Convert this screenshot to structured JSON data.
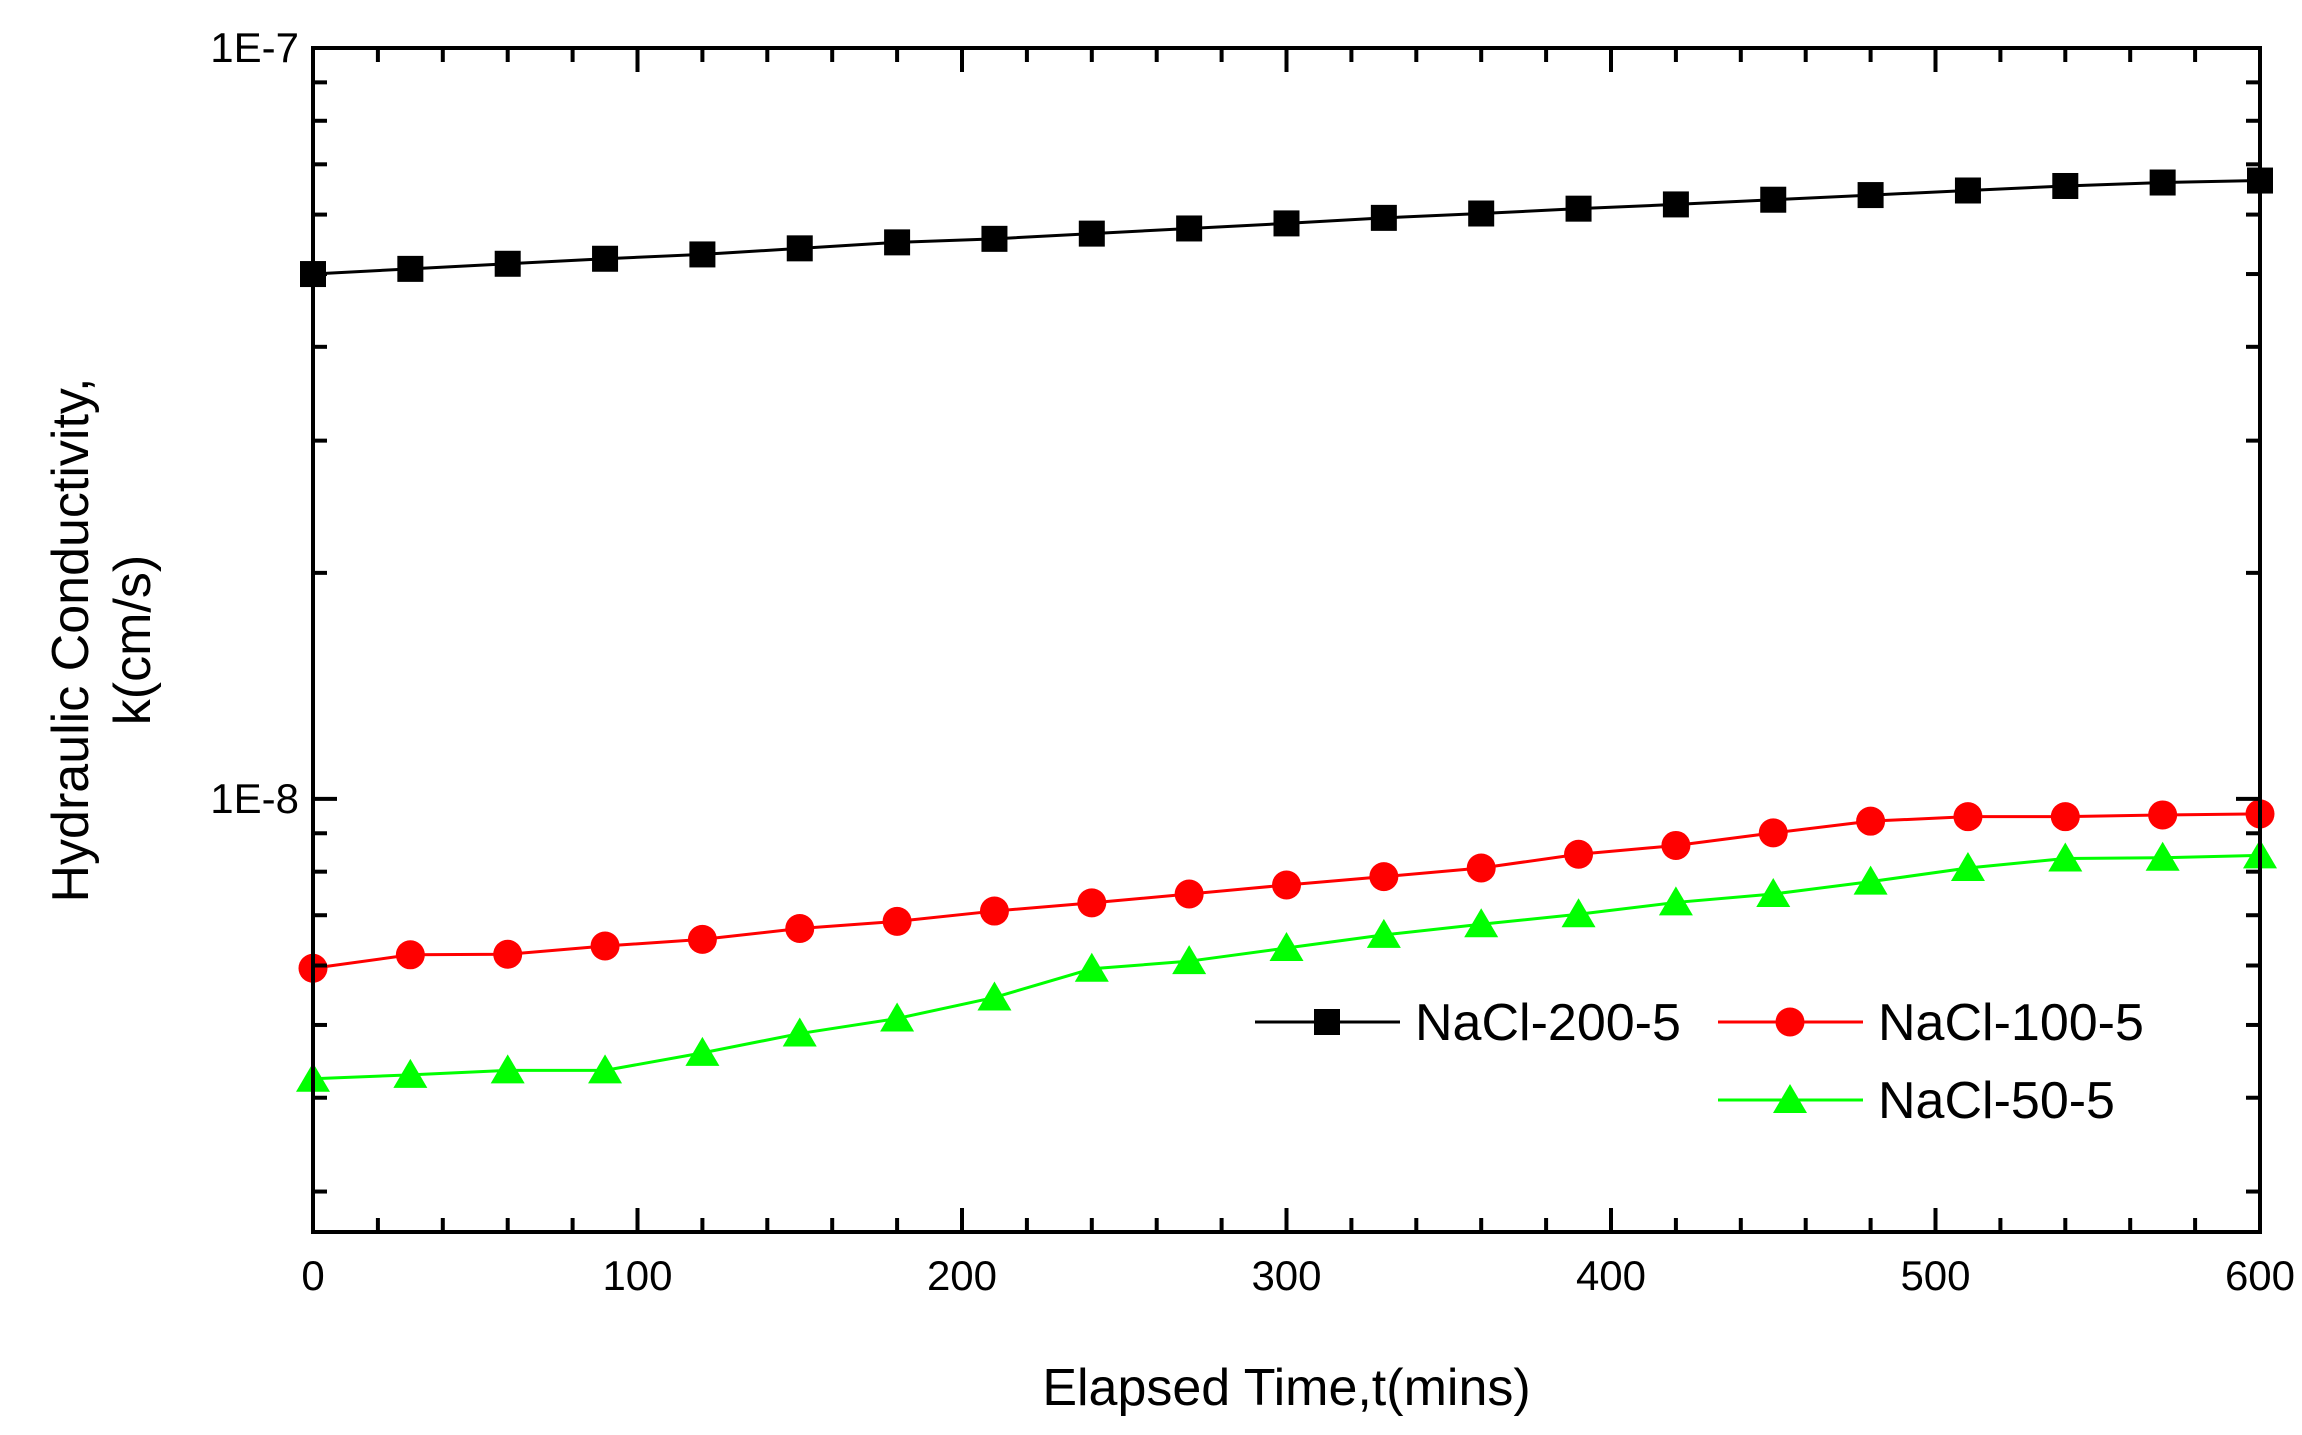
{
  "chart_data": {
    "type": "line",
    "xlabel": "Elapsed Time,t(mins)",
    "ylabel": [
      "Hydraulic Conductivity,",
      "k(cm/s)"
    ],
    "yscale": "log",
    "xlim": [
      0,
      600
    ],
    "ylim": [
      2.65e-09,
      1e-07
    ],
    "x_ticks": [
      0,
      100,
      200,
      300,
      400,
      500,
      600
    ],
    "x_tick_labels": [
      "0",
      "100",
      "200",
      "300",
      "400",
      "500",
      "600"
    ],
    "y_tick_labels": [
      {
        "value": 1e-07,
        "label": "1E-7"
      },
      {
        "value": 1e-08,
        "label": "1E-8"
      }
    ],
    "legend_position": "lower-right",
    "x": [
      0,
      30,
      60,
      90,
      120,
      150,
      180,
      210,
      240,
      270,
      300,
      330,
      360,
      390,
      420,
      450,
      480,
      510,
      540,
      570,
      600
    ],
    "series": [
      {
        "name": "NaCl-200-5",
        "marker": "square",
        "line_color": "#000000",
        "marker_color": "#000000",
        "values": [
          5e-08,
          5.08e-08,
          5.16e-08,
          5.24e-08,
          5.31e-08,
          5.41e-08,
          5.51e-08,
          5.57e-08,
          5.66e-08,
          5.75e-08,
          5.84e-08,
          5.94e-08,
          6.02e-08,
          6.11e-08,
          6.19e-08,
          6.28e-08,
          6.37e-08,
          6.46e-08,
          6.55e-08,
          6.62e-08,
          6.66e-08
        ]
      },
      {
        "name": "NaCl-100-5",
        "marker": "circle",
        "line_color": "#ff0000",
        "marker_color": "#ff0000",
        "values": [
          5.95e-09,
          6.2e-09,
          6.21e-09,
          6.37e-09,
          6.5e-09,
          6.72e-09,
          6.87e-09,
          7.09e-09,
          7.27e-09,
          7.47e-09,
          7.68e-09,
          7.88e-09,
          8.09e-09,
          8.44e-09,
          8.67e-09,
          9.01e-09,
          9.34e-09,
          9.47e-09,
          9.47e-09,
          9.52e-09,
          9.55e-09
        ]
      },
      {
        "name": "NaCl-50-5",
        "marker": "triangle",
        "line_color": "#00ff00",
        "marker_color": "#00ff00",
        "values": [
          4.24e-09,
          4.29e-09,
          4.35e-09,
          4.35e-09,
          4.59e-09,
          4.87e-09,
          5.1e-09,
          5.44e-09,
          5.94e-09,
          6.08e-09,
          6.33e-09,
          6.59e-09,
          6.81e-09,
          7.02e-09,
          7.28e-09,
          7.47e-09,
          7.76e-09,
          8.09e-09,
          8.33e-09,
          8.35e-09,
          8.41e-09
        ]
      }
    ]
  }
}
